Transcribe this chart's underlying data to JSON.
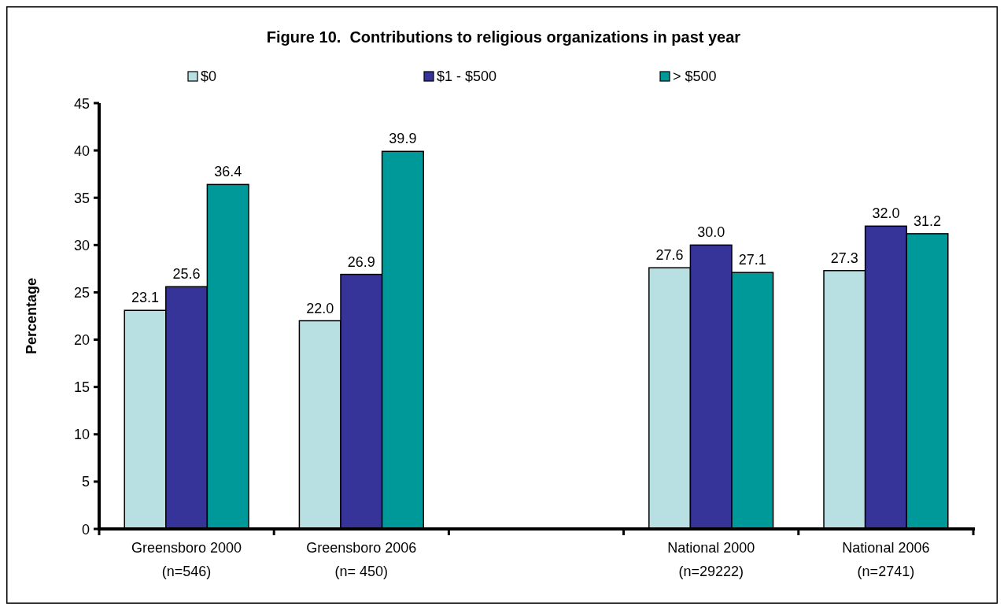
{
  "chart_data": {
    "type": "bar",
    "title": "Figure 10.  Contributions to religious organizations in past year",
    "ylabel": "Percentage",
    "categories": [
      "Greensboro 2000\n(n=546)",
      "Greensboro 2006\n(n= 450)",
      null,
      "National 2000\n(n=29222)",
      "National 2006\n(n=2741)"
    ],
    "series": [
      {
        "name": "$0",
        "color": "#b8e0e2",
        "values": [
          23.1,
          22.0,
          null,
          27.6,
          27.3
        ],
        "value_labels": [
          "23.1",
          "22.0",
          null,
          "27.6",
          "27.3"
        ]
      },
      {
        "name": "$1 - $500",
        "color": "#363399",
        "values": [
          25.6,
          26.9,
          null,
          30.0,
          32.0
        ],
        "value_labels": [
          "25.6",
          "26.9",
          null,
          "30.0",
          "32.0"
        ]
      },
      {
        "name": "> $500",
        "color": "#009999",
        "values": [
          36.4,
          39.9,
          null,
          27.1,
          31.2
        ],
        "value_labels": [
          "36.4",
          "39.9",
          null,
          "27.1",
          "31.2"
        ]
      }
    ],
    "ylim": [
      0,
      45
    ],
    "yticks": [
      0,
      5,
      10,
      15,
      20,
      25,
      30,
      35,
      40,
      45
    ],
    "legend": "top"
  }
}
